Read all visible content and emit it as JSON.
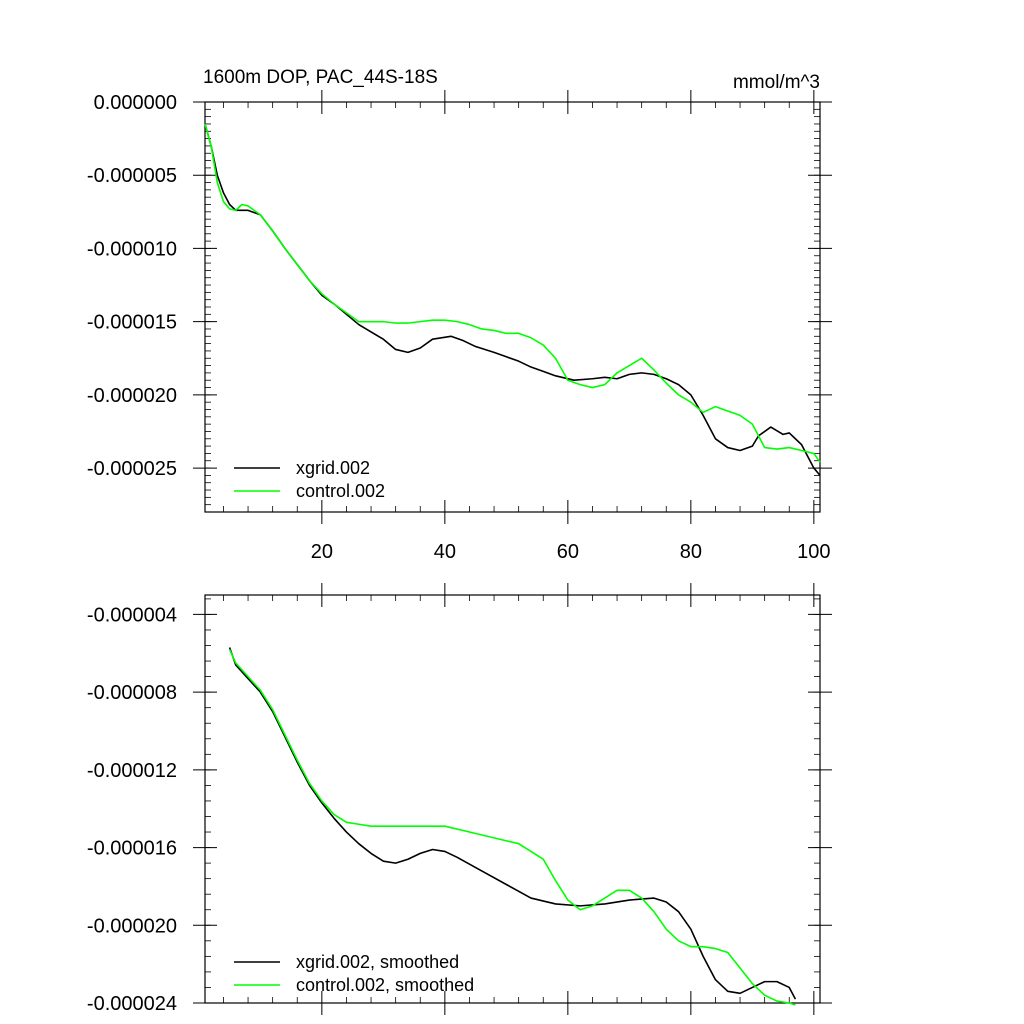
{
  "chart_data": [
    {
      "type": "line",
      "title_left": "1600m DOP, PAC_44S-18S",
      "title_right": "mmol/m^3",
      "xlabel": "",
      "ylabel": "",
      "xlim": [
        1,
        101
      ],
      "ylim": [
        -2.8e-05,
        0.0
      ],
      "x_ticks": [
        20,
        40,
        60,
        80,
        100
      ],
      "y_ticks": [
        0.0,
        -5e-06,
        -1e-05,
        -1.5e-05,
        -2e-05,
        -2.5e-05
      ],
      "y_tick_labels": [
        "0.000000",
        "-0.000005",
        "-0.000010",
        "-0.000015",
        "-0.000020",
        "-0.000025"
      ],
      "x_tick_labels": [
        "20",
        "40",
        "60",
        "80",
        "100"
      ],
      "legend_position": "bottom-left",
      "series": [
        {
          "name": "xgrid.002",
          "color": "#000000",
          "points": [
            [
              1,
              -1.5e-06
            ],
            [
              2,
              -3e-06
            ],
            [
              3,
              -5e-06
            ],
            [
              4,
              -6.2e-06
            ],
            [
              5,
              -7e-06
            ],
            [
              6,
              -7.4e-06
            ],
            [
              8,
              -7.4e-06
            ],
            [
              10,
              -7.7e-06
            ],
            [
              12,
              -8.8e-06
            ],
            [
              14,
              -1e-05
            ],
            [
              16,
              -1.11e-05
            ],
            [
              18,
              -1.22e-05
            ],
            [
              20,
              -1.32e-05
            ],
            [
              22,
              -1.38e-05
            ],
            [
              24,
              -1.45e-05
            ],
            [
              26,
              -1.52e-05
            ],
            [
              28,
              -1.57e-05
            ],
            [
              30,
              -1.62e-05
            ],
            [
              32,
              -1.69e-05
            ],
            [
              34,
              -1.71e-05
            ],
            [
              36,
              -1.68e-05
            ],
            [
              38,
              -1.62e-05
            ],
            [
              41,
              -1.6e-05
            ],
            [
              43,
              -1.63e-05
            ],
            [
              45,
              -1.67e-05
            ],
            [
              48,
              -1.71e-05
            ],
            [
              50,
              -1.74e-05
            ],
            [
              52,
              -1.77e-05
            ],
            [
              54,
              -1.81e-05
            ],
            [
              56,
              -1.84e-05
            ],
            [
              58,
              -1.87e-05
            ],
            [
              61,
              -1.9e-05
            ],
            [
              64,
              -1.89e-05
            ],
            [
              66,
              -1.88e-05
            ],
            [
              68,
              -1.89e-05
            ],
            [
              70,
              -1.86e-05
            ],
            [
              72,
              -1.85e-05
            ],
            [
              74,
              -1.86e-05
            ],
            [
              76,
              -1.89e-05
            ],
            [
              78,
              -1.93e-05
            ],
            [
              80,
              -2e-05
            ],
            [
              82,
              -2.14e-05
            ],
            [
              84,
              -2.3e-05
            ],
            [
              86,
              -2.36e-05
            ],
            [
              88,
              -2.38e-05
            ],
            [
              90,
              -2.35e-05
            ],
            [
              91,
              -2.28e-05
            ],
            [
              93,
              -2.22e-05
            ],
            [
              95,
              -2.27e-05
            ],
            [
              96,
              -2.26e-05
            ],
            [
              98,
              -2.34e-05
            ],
            [
              100,
              -2.5e-05
            ],
            [
              101,
              -2.55e-05
            ]
          ]
        },
        {
          "name": "control.002",
          "color": "#00ff00",
          "points": [
            [
              1,
              -1.5e-06
            ],
            [
              2,
              -3e-06
            ],
            [
              3,
              -5.5e-06
            ],
            [
              4,
              -6.8e-06
            ],
            [
              5,
              -7.3e-06
            ],
            [
              6,
              -7.4e-06
            ],
            [
              7,
              -7e-06
            ],
            [
              8,
              -7.1e-06
            ],
            [
              10,
              -7.7e-06
            ],
            [
              12,
              -8.8e-06
            ],
            [
              14,
              -1e-05
            ],
            [
              16,
              -1.11e-05
            ],
            [
              18,
              -1.22e-05
            ],
            [
              20,
              -1.31e-05
            ],
            [
              22,
              -1.38e-05
            ],
            [
              24,
              -1.44e-05
            ],
            [
              26,
              -1.5e-05
            ],
            [
              28,
              -1.5e-05
            ],
            [
              30,
              -1.5e-05
            ],
            [
              32,
              -1.51e-05
            ],
            [
              34,
              -1.51e-05
            ],
            [
              36,
              -1.5e-05
            ],
            [
              38,
              -1.49e-05
            ],
            [
              40,
              -1.49e-05
            ],
            [
              42,
              -1.5e-05
            ],
            [
              44,
              -1.52e-05
            ],
            [
              46,
              -1.55e-05
            ],
            [
              48,
              -1.56e-05
            ],
            [
              50,
              -1.58e-05
            ],
            [
              52,
              -1.58e-05
            ],
            [
              54,
              -1.61e-05
            ],
            [
              56,
              -1.66e-05
            ],
            [
              58,
              -1.75e-05
            ],
            [
              60,
              -1.9e-05
            ],
            [
              62,
              -1.93e-05
            ],
            [
              64,
              -1.95e-05
            ],
            [
              66,
              -1.93e-05
            ],
            [
              68,
              -1.85e-05
            ],
            [
              70,
              -1.8e-05
            ],
            [
              72,
              -1.75e-05
            ],
            [
              74,
              -1.83e-05
            ],
            [
              76,
              -1.92e-05
            ],
            [
              78,
              -2e-05
            ],
            [
              80,
              -2.05e-05
            ],
            [
              82,
              -2.12e-05
            ],
            [
              84,
              -2.08e-05
            ],
            [
              86,
              -2.11e-05
            ],
            [
              88,
              -2.14e-05
            ],
            [
              90,
              -2.2e-05
            ],
            [
              92,
              -2.36e-05
            ],
            [
              94,
              -2.37e-05
            ],
            [
              96,
              -2.36e-05
            ],
            [
              98,
              -2.38e-05
            ],
            [
              100,
              -2.4e-05
            ],
            [
              101,
              -2.46e-05
            ]
          ]
        }
      ]
    },
    {
      "type": "line",
      "xlabel": "",
      "ylabel": "",
      "xlim": [
        1,
        101
      ],
      "ylim": [
        -2.4e-05,
        -3e-06
      ],
      "x_ticks": [
        20,
        40,
        60,
        80,
        100
      ],
      "y_ticks": [
        -4e-06,
        -8e-06,
        -1.2e-05,
        -1.6e-05,
        -2e-05,
        -2.4e-05
      ],
      "y_tick_labels": [
        "-0.000004",
        "-0.000008",
        "-0.000012",
        "-0.000016",
        "-0.000020",
        "-0.000024"
      ],
      "legend_position": "bottom-left",
      "series": [
        {
          "name": "xgrid.002, smoothed",
          "color": "#000000",
          "points": [
            [
              5,
              -5.7e-06
            ],
            [
              6,
              -6.6e-06
            ],
            [
              8,
              -7.3e-06
            ],
            [
              10,
              -8e-06
            ],
            [
              12,
              -9e-06
            ],
            [
              14,
              -1.03e-05
            ],
            [
              16,
              -1.16e-05
            ],
            [
              18,
              -1.28e-05
            ],
            [
              20,
              -1.37e-05
            ],
            [
              22,
              -1.45e-05
            ],
            [
              24,
              -1.52e-05
            ],
            [
              26,
              -1.58e-05
            ],
            [
              28,
              -1.63e-05
            ],
            [
              30,
              -1.67e-05
            ],
            [
              32,
              -1.68e-05
            ],
            [
              34,
              -1.66e-05
            ],
            [
              36,
              -1.63e-05
            ],
            [
              38,
              -1.61e-05
            ],
            [
              40,
              -1.62e-05
            ],
            [
              42,
              -1.65e-05
            ],
            [
              46,
              -1.72e-05
            ],
            [
              50,
              -1.79e-05
            ],
            [
              54,
              -1.86e-05
            ],
            [
              58,
              -1.89e-05
            ],
            [
              62,
              -1.9e-05
            ],
            [
              66,
              -1.89e-05
            ],
            [
              70,
              -1.87e-05
            ],
            [
              74,
              -1.86e-05
            ],
            [
              76,
              -1.88e-05
            ],
            [
              78,
              -1.93e-05
            ],
            [
              80,
              -2.02e-05
            ],
            [
              82,
              -2.16e-05
            ],
            [
              84,
              -2.28e-05
            ],
            [
              86,
              -2.34e-05
            ],
            [
              88,
              -2.35e-05
            ],
            [
              90,
              -2.32e-05
            ],
            [
              92,
              -2.29e-05
            ],
            [
              94,
              -2.29e-05
            ],
            [
              96,
              -2.32e-05
            ],
            [
              97,
              -2.38e-05
            ]
          ]
        },
        {
          "name": "control.002, smoothed",
          "color": "#00ff00",
          "points": [
            [
              5,
              -5.8e-06
            ],
            [
              6,
              -6.5e-06
            ],
            [
              8,
              -7.2e-06
            ],
            [
              10,
              -7.9e-06
            ],
            [
              12,
              -8.9e-06
            ],
            [
              14,
              -1.02e-05
            ],
            [
              16,
              -1.15e-05
            ],
            [
              18,
              -1.27e-05
            ],
            [
              20,
              -1.36e-05
            ],
            [
              22,
              -1.43e-05
            ],
            [
              24,
              -1.47e-05
            ],
            [
              26,
              -1.48e-05
            ],
            [
              28,
              -1.49e-05
            ],
            [
              30,
              -1.49e-05
            ],
            [
              32,
              -1.49e-05
            ],
            [
              36,
              -1.49e-05
            ],
            [
              40,
              -1.49e-05
            ],
            [
              44,
              -1.52e-05
            ],
            [
              48,
              -1.55e-05
            ],
            [
              52,
              -1.58e-05
            ],
            [
              56,
              -1.66e-05
            ],
            [
              58,
              -1.77e-05
            ],
            [
              60,
              -1.87e-05
            ],
            [
              62,
              -1.92e-05
            ],
            [
              64,
              -1.9e-05
            ],
            [
              66,
              -1.86e-05
            ],
            [
              68,
              -1.82e-05
            ],
            [
              70,
              -1.82e-05
            ],
            [
              72,
              -1.86e-05
            ],
            [
              74,
              -1.93e-05
            ],
            [
              76,
              -2.02e-05
            ],
            [
              78,
              -2.08e-05
            ],
            [
              80,
              -2.11e-05
            ],
            [
              82,
              -2.11e-05
            ],
            [
              84,
              -2.12e-05
            ],
            [
              86,
              -2.14e-05
            ],
            [
              88,
              -2.22e-05
            ],
            [
              90,
              -2.3e-05
            ],
            [
              92,
              -2.36e-05
            ],
            [
              94,
              -2.39e-05
            ],
            [
              96,
              -2.4e-05
            ],
            [
              97,
              -2.41e-05
            ]
          ]
        }
      ]
    }
  ]
}
